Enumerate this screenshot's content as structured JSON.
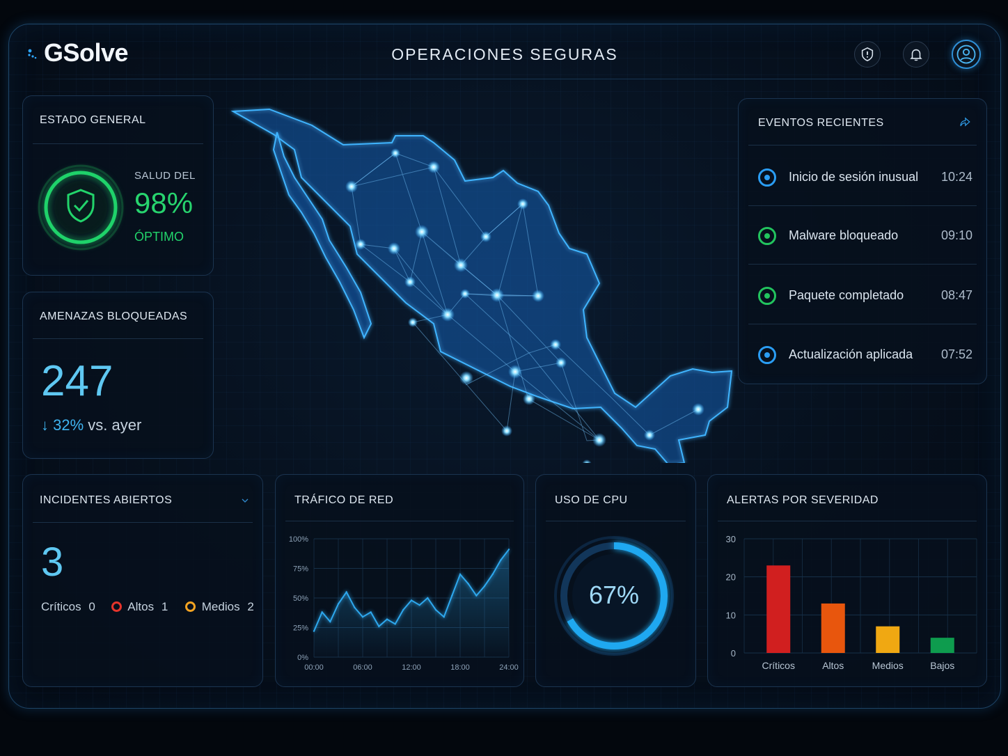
{
  "app": {
    "name": "GSolve",
    "title": "OPERACIONES SEGURAS"
  },
  "header": {
    "icons": [
      "shield-alert-icon",
      "bell-icon",
      "user-icon"
    ]
  },
  "estado_general": {
    "title": "ESTADO GENERAL",
    "label": "SALUD DEL",
    "value": "98%",
    "status": "ÓPTIMO",
    "status_color": "#22d46b"
  },
  "amenazas": {
    "title": "AMENAZAS BLOQUEADAS",
    "value": "247",
    "arrow": "↓",
    "change": "32%",
    "change_suffix": "vs. ayer"
  },
  "eventos": {
    "title": "EVENTOS RECIENTES",
    "items": [
      {
        "label": "Inicio de sesión inusual",
        "time": "10:24",
        "color": "#2a9df4"
      },
      {
        "label": "Malware bloqueado",
        "time": "09:10",
        "color": "#22c45e"
      },
      {
        "label": "Paquete completado",
        "time": "08:47",
        "color": "#22c45e"
      },
      {
        "label": "Actualización aplicada",
        "time": "07:52",
        "color": "#2a9df4"
      }
    ]
  },
  "incidentes": {
    "title": "INCIDENTES ABIERTOS",
    "value": "3",
    "criticos_label": "Críticos",
    "criticos_value": "0",
    "altos_label": "Altos",
    "altos_value": "1",
    "medios_label": "Medios",
    "medios_value": "2",
    "colors": {
      "altos": "#e5342b",
      "medios": "#f2a322"
    }
  },
  "trafico": {
    "title": "TRÁFICO DE RED",
    "chart_data": {
      "type": "area",
      "x": [
        "00:00",
        "01:00",
        "02:00",
        "03:00",
        "04:00",
        "05:00",
        "06:00",
        "07:00",
        "08:00",
        "09:00",
        "10:00",
        "11:00",
        "12:00",
        "13:00",
        "14:00",
        "15:00",
        "16:00",
        "17:00",
        "18:00",
        "19:00",
        "20:00",
        "21:00",
        "22:00",
        "23:00",
        "24:00"
      ],
      "xticks": [
        "00:00",
        "06:00",
        "12:00",
        "18:00",
        "24:00"
      ],
      "yticks": [
        "100%",
        "75%",
        "50%",
        "25%",
        "0%"
      ],
      "values": [
        22,
        38,
        30,
        45,
        55,
        42,
        34,
        38,
        26,
        32,
        28,
        40,
        48,
        44,
        50,
        40,
        34,
        52,
        70,
        62,
        52,
        60,
        70,
        82,
        91
      ],
      "ylim": [
        0,
        100
      ],
      "color": "#2ea8ee"
    }
  },
  "cpu": {
    "title": "USO DE CPU",
    "value": "67%",
    "fraction": 0.67,
    "color": "#1fa8f0"
  },
  "alertas": {
    "title": "ALERTAS POR SEVERIDAD",
    "chart_data": {
      "type": "bar",
      "categories": [
        "Críticos",
        "Altos",
        "Medios",
        "Bajos"
      ],
      "values": [
        23,
        13,
        7,
        4
      ],
      "ylim": [
        0,
        30
      ],
      "yticks": [
        0,
        10,
        20,
        30
      ],
      "colors": [
        "#d11f1f",
        "#e8560d",
        "#f0a812",
        "#0e9c4e"
      ]
    }
  }
}
